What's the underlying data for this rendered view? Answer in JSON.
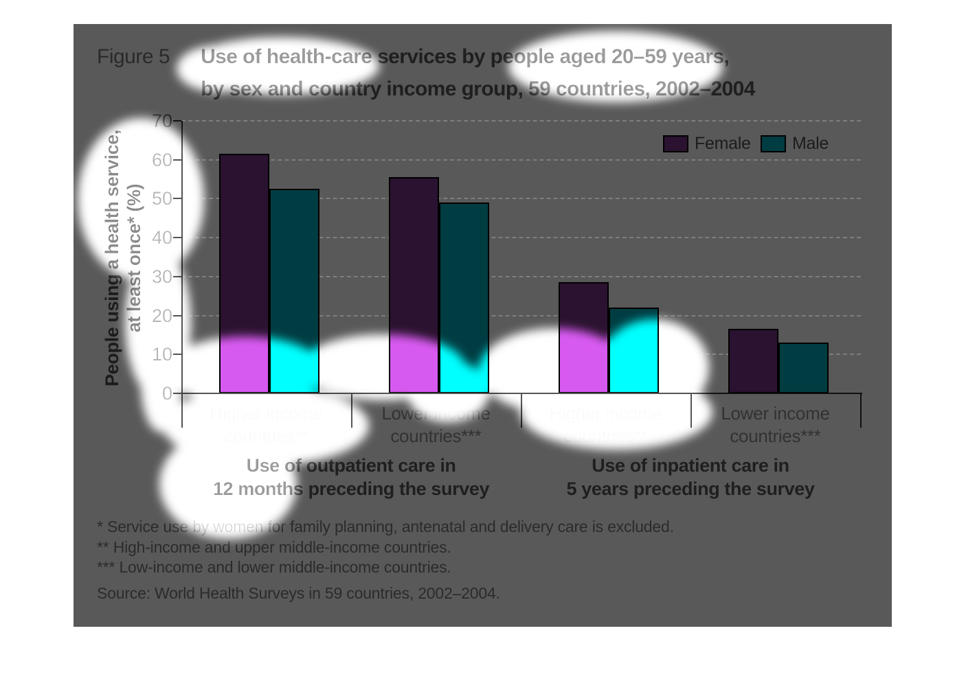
{
  "figure": {
    "label": "Figure 5",
    "title_line1": "Use of health-care services by people aged 20–59 years,",
    "title_line2": "by sex and country income group, 59 countries, 2002–2004"
  },
  "legend": [
    {
      "label": "Female",
      "color_key": "female"
    },
    {
      "label": "Male",
      "color_key": "male"
    }
  ],
  "colors": {
    "background": "#595959",
    "female": "#2b1230",
    "male": "#003d42",
    "grid": "#7e7e7e",
    "axis": "#111111",
    "occluded_female": "#bb50c8",
    "occluded_male": "#00eefc"
  },
  "y_axis": {
    "title_line1": "People using a health service,",
    "title_line2": "at least once* (%)",
    "ticks": [
      0,
      10,
      20,
      30,
      40,
      50,
      60,
      70
    ]
  },
  "chart_data": {
    "type": "bar",
    "title": "Use of health-care services by people aged 20–59 years, by sex and country income group, 59 countries, 2002–2004",
    "ylabel": "People using a health service, at least once* (%)",
    "xlabel": "",
    "ylim": [
      0,
      70
    ],
    "grid": "horizontal dashed",
    "legend_position": "top-right",
    "series": [
      {
        "name": "Female",
        "values": [
          61.5,
          55.5,
          28.5,
          16.5
        ]
      },
      {
        "name": "Male",
        "values": [
          52.5,
          49,
          22,
          13
        ]
      }
    ],
    "groups": [
      {
        "group_label": [
          "Use of outpatient care in",
          "12 months preceding the survey"
        ],
        "categories": [
          {
            "label": [
              "Higher income",
              "countries**"
            ],
            "female": 61.5,
            "male": 52.5
          },
          {
            "label": [
              "Lower income",
              "countries***"
            ],
            "female": 55.5,
            "male": 49
          }
        ]
      },
      {
        "group_label": [
          "Use of inpatient care in",
          "5 years preceding the survey"
        ],
        "categories": [
          {
            "label": [
              "Higher income",
              "countries**"
            ],
            "female": 28.5,
            "male": 22
          },
          {
            "label": [
              "Lower income",
              "countries***"
            ],
            "female": 16.5,
            "male": 13
          }
        ]
      }
    ]
  },
  "footnotes": [
    "* Service use by women for family planning, antenatal and delivery care is excluded.",
    "** High-income and upper middle-income countries.",
    "*** Low-income and lower middle-income countries."
  ],
  "source": "Source: World Health Surveys in 59 countries, 2002–2004."
}
